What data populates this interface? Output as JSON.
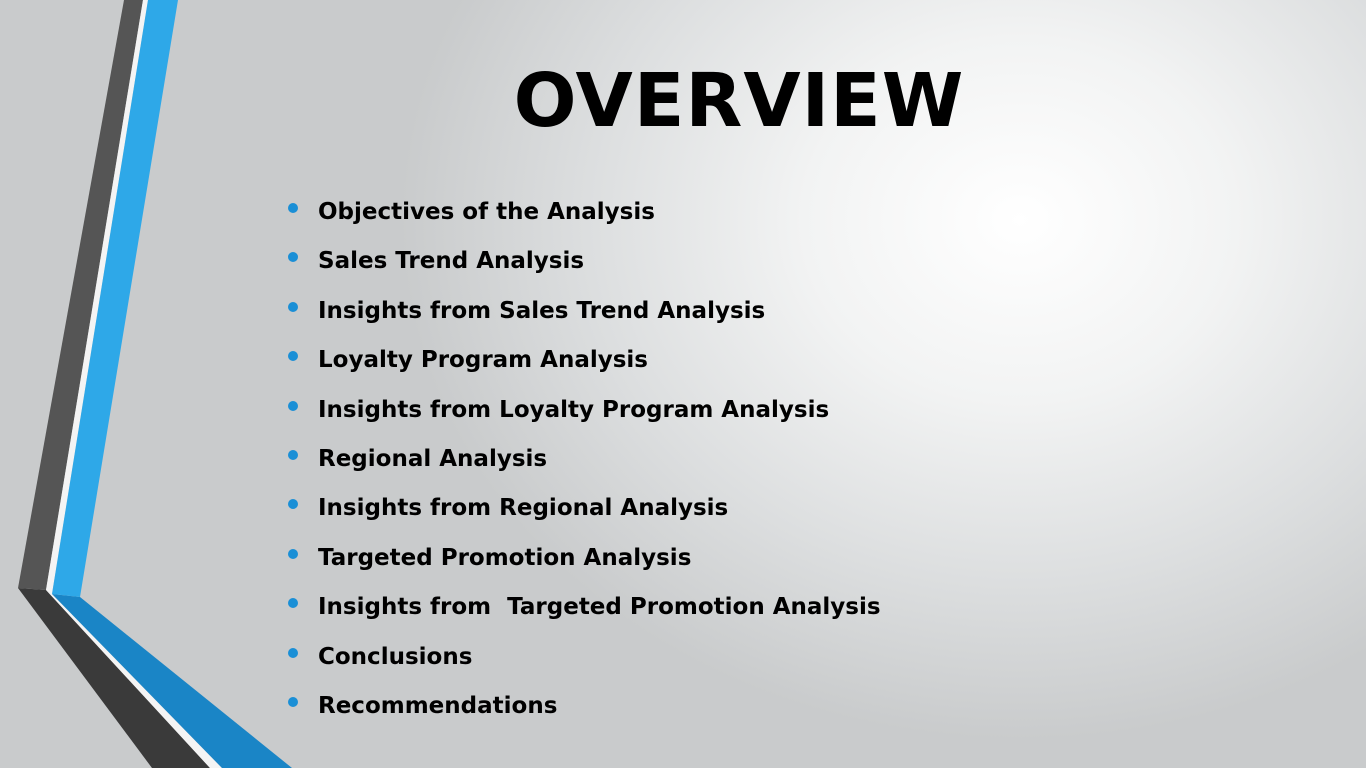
{
  "slide": {
    "title": "OVERVIEW",
    "bullets": [
      "Objectives of the Analysis",
      "Sales Trend Analysis",
      "Insights from Sales Trend Analysis",
      "Loyalty Program Analysis",
      "Insights from Loyalty Program Analysis",
      "Regional Analysis",
      "Insights from Regional Analysis",
      "Targeted Promotion Analysis",
      "Insights from  Targeted Promotion Analysis",
      "Conclusions",
      "Recommendations"
    ]
  },
  "colors": {
    "accent_blue": "#2ea8e8",
    "dark_blue": "#1a85c6",
    "dark_gray": "#555555",
    "bullet": "#1a8fd6",
    "text": "#000000"
  },
  "icons": {
    "bullet": "circle-bullet-icon",
    "decoration": "angled-stripes-decoration"
  }
}
